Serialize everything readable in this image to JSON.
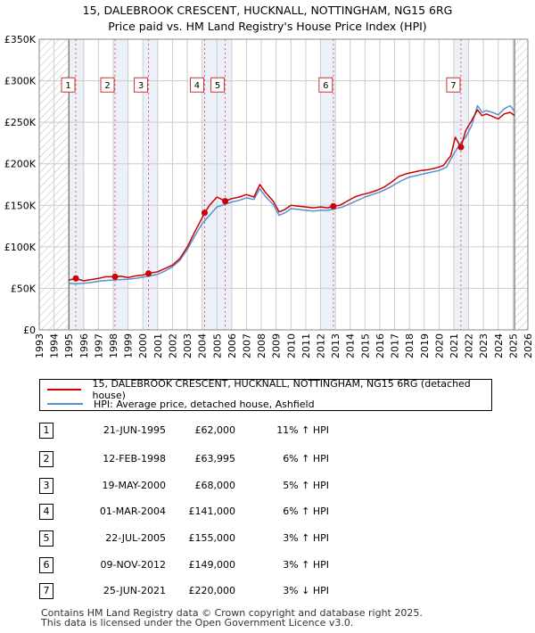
{
  "title_line1": "15, DALEBROOK CRESCENT, HUCKNALL, NOTTINGHAM, NG15 6RG",
  "title_line2": "Price paid vs. HM Land Registry's House Price Index (HPI)",
  "colors": {
    "price": "#cc0000",
    "hpi": "#5b8fd0",
    "band": "#dde6f5",
    "grid": "#cccccc",
    "vline": "#e06060"
  },
  "chart_data": {
    "type": "line",
    "xlim": [
      1993,
      2026
    ],
    "ylim": [
      0,
      350000
    ],
    "x_ticks": [
      1993,
      1994,
      1995,
      1996,
      1997,
      1998,
      1999,
      2000,
      2001,
      2002,
      2003,
      2004,
      2005,
      2006,
      2007,
      2008,
      2009,
      2010,
      2011,
      2012,
      2013,
      2014,
      2015,
      2016,
      2017,
      2018,
      2019,
      2020,
      2021,
      2022,
      2023,
      2024,
      2025,
      2026
    ],
    "x_tick_labels": [
      "1993",
      "1994",
      "1995",
      "1996",
      "1997",
      "1998",
      "1999",
      "2000",
      "2001",
      "2002",
      "2003",
      "2004",
      "2005",
      "2006",
      "2007",
      "2008",
      "2009",
      "2010",
      "2011",
      "2012",
      "2013",
      "2014",
      "2015",
      "2016",
      "2017",
      "2018",
      "2019",
      "2020",
      "2021",
      "2022",
      "2023",
      "2024",
      "2025",
      "2026"
    ],
    "y_ticks": [
      0,
      50000,
      100000,
      150000,
      200000,
      250000,
      300000,
      350000
    ],
    "y_tick_labels": [
      "£0",
      "£50K",
      "£100K",
      "£150K",
      "£200K",
      "£250K",
      "£300K",
      "£350K"
    ],
    "hatch_ranges": [
      [
        1993,
        1995.0
      ],
      [
        2025.1,
        2026
      ]
    ],
    "series": [
      {
        "name": "15, DALEBROOK CRESCENT, HUCKNALL, NOTTINGHAM, NG15 6RG (detached house)",
        "x": [
          1995.0,
          1995.47,
          1996.0,
          1996.5,
          1997.0,
          1997.5,
          1998.12,
          1998.5,
          1999.0,
          1999.5,
          2000.0,
          2000.38,
          2001.0,
          2001.5,
          2002.0,
          2002.5,
          2003.0,
          2003.5,
          2004.0,
          2004.17,
          2004.5,
          2005.0,
          2005.56,
          2006.0,
          2006.5,
          2007.0,
          2007.5,
          2007.9,
          2008.3,
          2008.8,
          2009.2,
          2009.6,
          2010.0,
          2010.5,
          2011.0,
          2011.5,
          2012.0,
          2012.5,
          2012.86,
          2013.3,
          2013.8,
          2014.3,
          2014.8,
          2015.3,
          2015.8,
          2016.3,
          2016.8,
          2017.3,
          2017.8,
          2018.3,
          2018.8,
          2019.3,
          2019.8,
          2020.3,
          2020.8,
          2021.1,
          2021.48,
          2021.8,
          2022.2,
          2022.6,
          2022.9,
          2023.2,
          2023.6,
          2024.0,
          2024.4,
          2024.8,
          2025.1
        ],
        "values": [
          60000,
          62000,
          59000,
          60500,
          62000,
          64000,
          63995,
          64500,
          63000,
          65000,
          66000,
          68000,
          70000,
          74000,
          78000,
          86000,
          100000,
          118000,
          135000,
          141000,
          150000,
          160000,
          155000,
          158000,
          160000,
          163000,
          160000,
          175000,
          165000,
          155000,
          142000,
          145000,
          150000,
          149000,
          148000,
          147000,
          148000,
          147000,
          149000,
          150000,
          155000,
          160000,
          163000,
          165000,
          168000,
          172000,
          178000,
          185000,
          188000,
          190000,
          192000,
          193000,
          195000,
          198000,
          210000,
          232000,
          220000,
          240000,
          252000,
          265000,
          258000,
          260000,
          257000,
          254000,
          260000,
          262000,
          258000
        ]
      },
      {
        "name": "HPI: Average price, detached house, Ashfield",
        "x": [
          1995.0,
          1995.5,
          1996.0,
          1996.5,
          1997.0,
          1997.5,
          1998.0,
          1998.5,
          1999.0,
          1999.5,
          2000.0,
          2000.5,
          2001.0,
          2001.5,
          2002.0,
          2002.5,
          2003.0,
          2003.5,
          2004.0,
          2004.5,
          2005.0,
          2005.5,
          2006.0,
          2006.5,
          2007.0,
          2007.5,
          2007.9,
          2008.3,
          2008.8,
          2009.2,
          2009.6,
          2010.0,
          2010.5,
          2011.0,
          2011.5,
          2012.0,
          2012.5,
          2013.0,
          2013.5,
          2014.0,
          2014.5,
          2015.0,
          2015.5,
          2016.0,
          2016.5,
          2017.0,
          2017.5,
          2018.0,
          2018.5,
          2019.0,
          2019.5,
          2020.0,
          2020.5,
          2021.0,
          2021.5,
          2021.8,
          2022.2,
          2022.6,
          2022.9,
          2023.2,
          2023.6,
          2024.0,
          2024.4,
          2024.8,
          2025.1
        ],
        "values": [
          56000,
          55500,
          56000,
          57000,
          58500,
          59500,
          60000,
          60500,
          61000,
          62000,
          63500,
          65000,
          67000,
          71000,
          76000,
          84000,
          97000,
          113000,
          128000,
          138000,
          148000,
          151000,
          154000,
          156000,
          159000,
          157000,
          170000,
          160000,
          151000,
          138000,
          141000,
          146000,
          145000,
          144000,
          143000,
          144000,
          144000,
          146000,
          148000,
          152000,
          156000,
          160000,
          163000,
          166000,
          170000,
          175000,
          180000,
          184000,
          186000,
          188000,
          190000,
          192000,
          196000,
          212000,
          226000,
          232000,
          246000,
          270000,
          262000,
          264000,
          262000,
          259000,
          266000,
          270000,
          263000
        ]
      }
    ],
    "sales": [
      {
        "label": "1",
        "x": 1995.47,
        "price": 62000
      },
      {
        "label": "2",
        "x": 1998.12,
        "price": 63995
      },
      {
        "label": "3",
        "x": 2000.38,
        "price": 68000
      },
      {
        "label": "4",
        "x": 2004.17,
        "price": 141000
      },
      {
        "label": "5",
        "x": 2005.56,
        "price": 155000
      },
      {
        "label": "6",
        "x": 2012.86,
        "price": 149000
      },
      {
        "label": "7",
        "x": 2021.48,
        "price": 220000
      }
    ]
  },
  "legend": {
    "price_label": "15, DALEBROOK CRESCENT, HUCKNALL, NOTTINGHAM, NG15 6RG (detached house)",
    "hpi_label": "HPI: Average price, detached house, Ashfield"
  },
  "transactions": [
    {
      "num": "1",
      "date": "21-JUN-1995",
      "price": "£62,000",
      "hpi": "11% ↑ HPI"
    },
    {
      "num": "2",
      "date": "12-FEB-1998",
      "price": "£63,995",
      "hpi": "6% ↑ HPI"
    },
    {
      "num": "3",
      "date": "19-MAY-2000",
      "price": "£68,000",
      "hpi": "5% ↑ HPI"
    },
    {
      "num": "4",
      "date": "01-MAR-2004",
      "price": "£141,000",
      "hpi": "6% ↑ HPI"
    },
    {
      "num": "5",
      "date": "22-JUL-2005",
      "price": "£155,000",
      "hpi": "3% ↑ HPI"
    },
    {
      "num": "6",
      "date": "09-NOV-2012",
      "price": "£149,000",
      "hpi": "3% ↑ HPI"
    },
    {
      "num": "7",
      "date": "25-JUN-2021",
      "price": "£220,000",
      "hpi": "3% ↓ HPI"
    }
  ],
  "footer": {
    "line1": "Contains HM Land Registry data © Crown copyright and database right 2025.",
    "line2": "This data is licensed under the Open Government Licence v3.0."
  }
}
